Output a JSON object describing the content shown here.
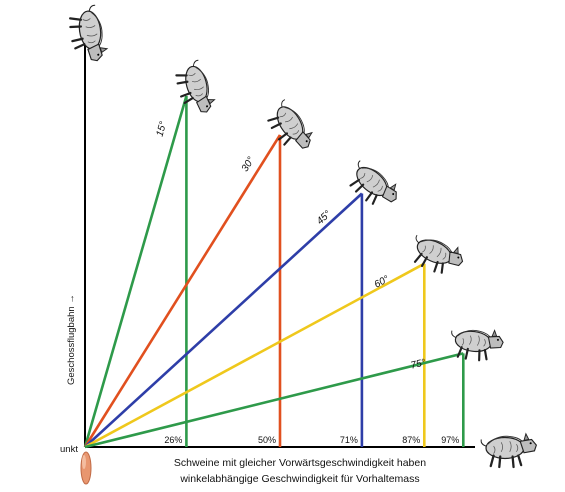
{
  "origin_label": "unkt",
  "vertical_axis_label": "Geschossflugbahn →",
  "caption_line1": "Schweine mit gleicher Vorwärtsgeschwindigkeit haben",
  "caption_line2": "winkelabhängige Geschwindigkeit für Vorhaltemass",
  "diagram": {
    "max_lead": 1.0,
    "lines": [
      {
        "angle": "15°",
        "percent": "26%",
        "lead": 0.26,
        "height": 0.9,
        "color": "#2e9a4a"
      },
      {
        "angle": "30°",
        "percent": "50%",
        "lead": 0.5,
        "height": 0.8,
        "color": "#e1501f"
      },
      {
        "angle": "45°",
        "percent": "71%",
        "lead": 0.71,
        "height": 0.65,
        "color": "#2e3ea8"
      },
      {
        "angle": "60°",
        "percent": "87%",
        "lead": 0.87,
        "height": 0.47,
        "color": "#efc81c"
      },
      {
        "angle": "75°",
        "percent": "97%",
        "lead": 0.97,
        "height": 0.24,
        "color": "#2e9a4a"
      }
    ]
  }
}
